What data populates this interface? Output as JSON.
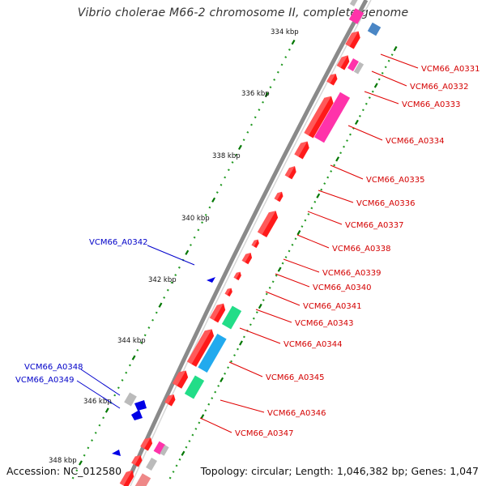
{
  "title": "Vibrio cholerae M66-2 chromosome II, complete genome",
  "footer": {
    "accession": "Accession: NC_012580",
    "summary": "Topology: circular; Length: 1,046,382 bp; Genes: 1,047"
  },
  "colors": {
    "backbone": "#8a8a8a",
    "forward_gene": "#ff1a1a",
    "reverse_gene": "#0000e6",
    "label_forward": "#d40000",
    "label_reverse": "#0000c8",
    "tick_major": "#007700",
    "tick_minor": "#229922",
    "pink": "#ff33aa",
    "cyan": "#22aaee",
    "green": "#22dd88",
    "steelblue": "#4a86c5",
    "gray": "#bbbbbb"
  },
  "scale_labels": [
    "334 kbp",
    "336 kbp",
    "338 kbp",
    "340 kbp",
    "342 kbp",
    "344 kbp",
    "346 kbp",
    "348 kbp"
  ],
  "gene_labels_forward": [
    "VCM66_A0331",
    "VCM66_A0332",
    "VCM66_A0333",
    "VCM66_A0334",
    "VCM66_A0335",
    "VCM66_A0336",
    "VCM66_A0337",
    "VCM66_A0338",
    "VCM66_A0339",
    "VCM66_A0340",
    "VCM66_A0341",
    "VCM66_A0343",
    "VCM66_A0344",
    "VCM66_A0345",
    "VCM66_A0346",
    "VCM66_A0347"
  ],
  "gene_labels_reverse": [
    "VCM66_A0342",
    "VCM66_A0348",
    "VCM66_A0349"
  ]
}
